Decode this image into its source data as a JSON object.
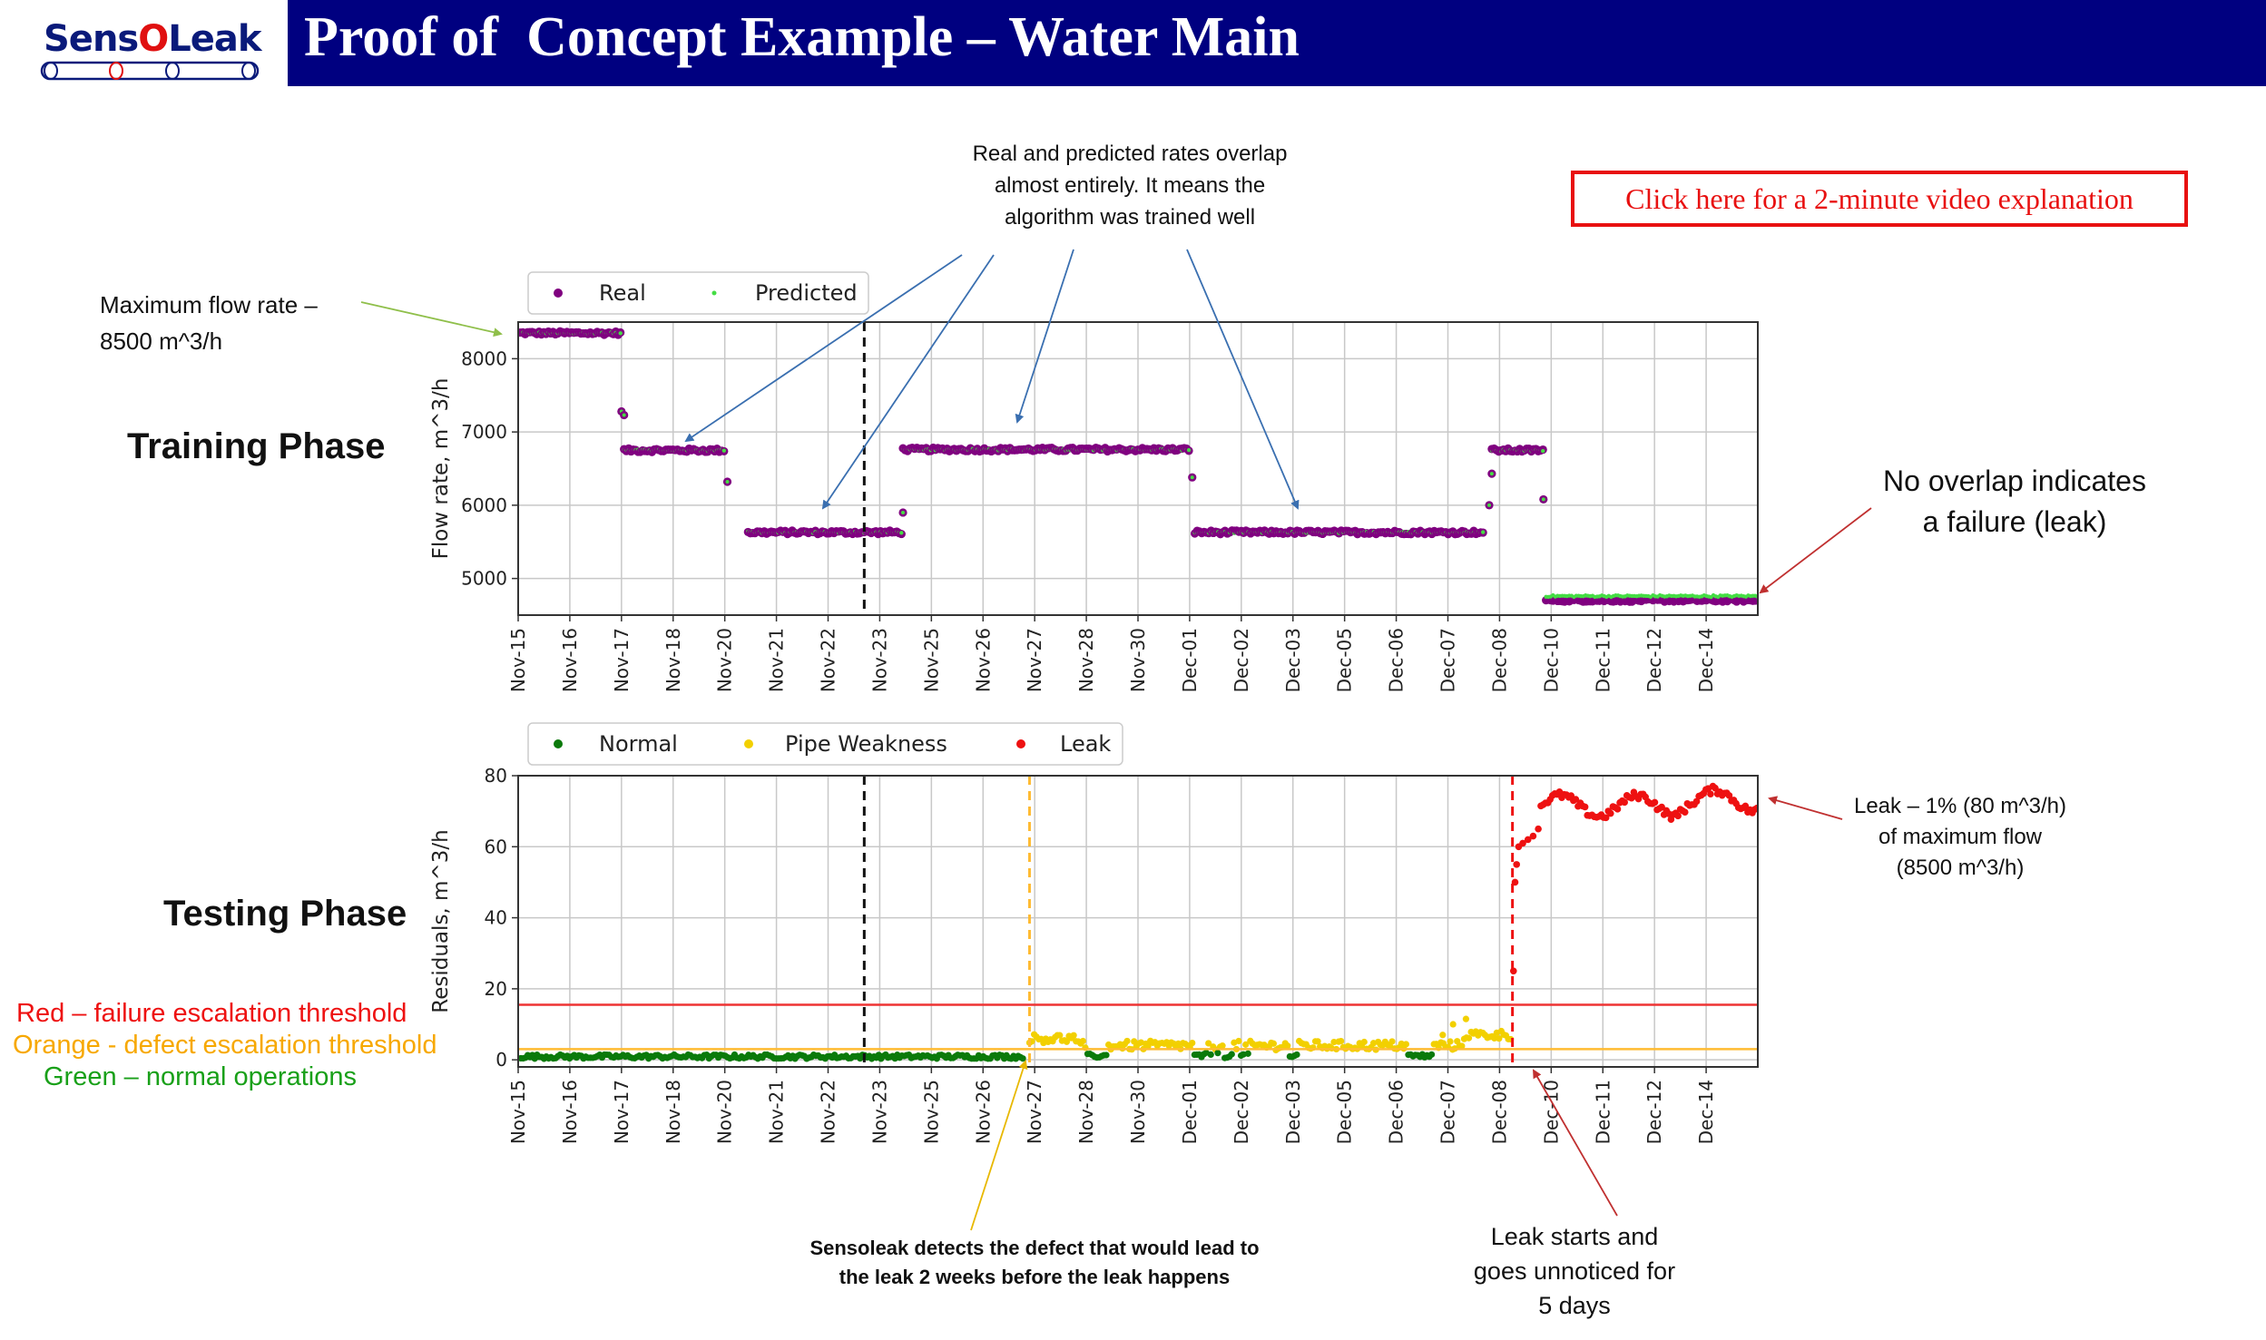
{
  "logo": {
    "text_prefix": "Sens",
    "text_o": "O",
    "text_suffix": "Leak"
  },
  "header": {
    "title": "Proof of  Concept Example – Water Main"
  },
  "video_link": {
    "label": "Click here for a 2-minute video explanation"
  },
  "annotations": {
    "overlap_note": [
      "Real and predicted rates overlap",
      "almost entirely. It means the",
      "algorithm was trained well"
    ],
    "max_flow": [
      "Maximum flow rate –",
      "8500 m^3/h"
    ],
    "no_overlap": [
      "No overlap indicates",
      "a failure (leak)"
    ],
    "leak_pct": [
      "Leak – 1% (80 m^3/h)",
      "of maximum flow",
      "(8500 m^3/h)"
    ],
    "detect": [
      "Sensoleak detects the defect that would lead to",
      "the leak 2 weeks before the leak happens"
    ],
    "leak_start": [
      "Leak starts and",
      "goes unnoticed for",
      "5 days"
    ]
  },
  "phases": {
    "training": "Training Phase",
    "testing": "Testing Phase"
  },
  "threshold_legend": {
    "red": "Red – failure escalation threshold",
    "orange": "Orange - defect escalation threshold",
    "green": "Green – normal operations"
  },
  "colors": {
    "real": "#800080",
    "predicted": "#44dd44",
    "normal": "#0b7a0b",
    "weakness": "#f2d000",
    "leak": "#ee1111",
    "red_line": "#ee3333",
    "orange_line": "#ffbb33",
    "navy": "#000080"
  },
  "chart_data": [
    {
      "type": "scatter",
      "title": "",
      "xlabel": "",
      "ylabel": "Flow rate, m^3/h",
      "x_ticks": [
        "Nov-15",
        "Nov-16",
        "Nov-17",
        "Nov-18",
        "Nov-20",
        "Nov-21",
        "Nov-22",
        "Nov-23",
        "Nov-25",
        "Nov-26",
        "Nov-27",
        "Nov-28",
        "Nov-30",
        "Dec-01",
        "Dec-02",
        "Dec-03",
        "Dec-05",
        "Dec-06",
        "Dec-07",
        "Dec-08",
        "Dec-10",
        "Dec-11",
        "Dec-12",
        "Dec-14"
      ],
      "y_ticks": [
        5000,
        6000,
        7000,
        8000
      ],
      "ylim": [
        4500,
        8500
      ],
      "xlim": [
        0,
        24
      ],
      "grid": true,
      "legend_position": "top-left",
      "vline_x": 6.7,
      "segments": [
        {
          "x0": 0.0,
          "x1": 2.0,
          "y": 8350
        },
        {
          "x0": 2.05,
          "x1": 4.0,
          "y": 6750
        },
        {
          "x0": 4.45,
          "x1": 7.45,
          "y": 5630
        },
        {
          "x0": 7.45,
          "x1": 13.0,
          "y": 6760
        },
        {
          "x0": 13.1,
          "x1": 18.7,
          "y": 5630
        },
        {
          "x0": 18.85,
          "x1": 19.85,
          "y": 6750
        }
      ],
      "transition_points": [
        {
          "x": 2.0,
          "y": 7280
        },
        {
          "x": 2.05,
          "y": 7230
        },
        {
          "x": 4.05,
          "y": 6320
        },
        {
          "x": 7.45,
          "y": 5900
        },
        {
          "x": 13.05,
          "y": 6380
        },
        {
          "x": 18.8,
          "y": 6000
        },
        {
          "x": 18.85,
          "y": 6430
        },
        {
          "x": 19.85,
          "y": 6080
        }
      ],
      "leak_segment": {
        "x0": 19.9,
        "x1": 24.0,
        "real": 4700,
        "predicted": 4760
      },
      "series": [
        {
          "name": "Real"
        },
        {
          "name": "Predicted"
        }
      ]
    },
    {
      "type": "scatter",
      "title": "",
      "xlabel": "",
      "ylabel": "Residuals, m^3/h",
      "x_ticks": [
        "Nov-15",
        "Nov-16",
        "Nov-17",
        "Nov-18",
        "Nov-20",
        "Nov-21",
        "Nov-22",
        "Nov-23",
        "Nov-25",
        "Nov-26",
        "Nov-27",
        "Nov-28",
        "Nov-30",
        "Dec-01",
        "Dec-02",
        "Dec-03",
        "Dec-05",
        "Dec-06",
        "Dec-07",
        "Dec-08",
        "Dec-10",
        "Dec-11",
        "Dec-12",
        "Dec-14"
      ],
      "y_ticks": [
        0,
        20,
        40,
        60,
        80
      ],
      "ylim": [
        -2,
        80
      ],
      "xlim": [
        0,
        24
      ],
      "grid": true,
      "legend_position": "top-left",
      "thresholds": {
        "failure": 15.5,
        "defect": 3
      },
      "vlines": {
        "black": 6.7,
        "orange": 9.9,
        "red": 19.25
      },
      "series": [
        {
          "name": "Normal"
        },
        {
          "name": "Pipe Weakness"
        },
        {
          "name": "Leak"
        }
      ]
    }
  ]
}
